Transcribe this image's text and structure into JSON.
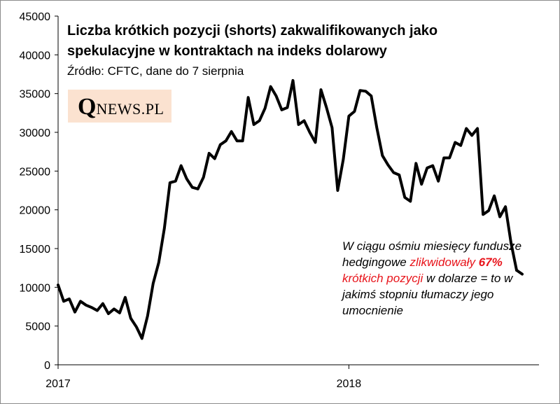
{
  "chart_data": {
    "type": "line",
    "title": "Liczba krótkich pozycji (shorts) zakwalifikowanych jako spekulacyjne w kontraktach na indeks dolarowy",
    "subtitle": "Źródło: CFTC, dane do 7 sierpnia",
    "xlabel": "",
    "ylabel": "",
    "ylim": [
      0,
      45000
    ],
    "y_ticks": [
      "0",
      "5000",
      "10000",
      "15000",
      "20000",
      "25000",
      "30000",
      "35000",
      "40000",
      "45000"
    ],
    "x_ticks": [
      {
        "label": "2017",
        "week": 0
      },
      {
        "label": "2018",
        "week": 52
      }
    ],
    "grid": false,
    "legend": "none",
    "line_color": "#000000",
    "series": [
      {
        "x": [
          0,
          1,
          2,
          3,
          4,
          5,
          6,
          7,
          8,
          9,
          10,
          11,
          12,
          13,
          14,
          15,
          16,
          17,
          18,
          19,
          20,
          21,
          22,
          23,
          24,
          25,
          26,
          27,
          28,
          29,
          30,
          31,
          32,
          33,
          34,
          35,
          36,
          37,
          38,
          39,
          40,
          41,
          42,
          43,
          44,
          45,
          46,
          47,
          48,
          49,
          50,
          51,
          52,
          53,
          54,
          55,
          56,
          57,
          58,
          59,
          60,
          61,
          62,
          63,
          64,
          65,
          66,
          67,
          68,
          69,
          70,
          71,
          72,
          73,
          74,
          75,
          76,
          77,
          78,
          79,
          80,
          81,
          82
        ],
        "values": [
          10300,
          8200,
          8500,
          6800,
          8200,
          7700,
          7400,
          7000,
          7900,
          6600,
          7200,
          6700,
          8700,
          6000,
          4900,
          3400,
          6300,
          10500,
          13200,
          17600,
          23500,
          23700,
          25700,
          24000,
          22900,
          22700,
          24200,
          27300,
          26600,
          28400,
          28900,
          30100,
          28900,
          28900,
          34500,
          31000,
          31500,
          33100,
          35900,
          34700,
          32900,
          33200,
          36700,
          31000,
          31500,
          30000,
          28700,
          35500,
          33200,
          30600,
          22500,
          26500,
          32100,
          32700,
          35400,
          35300,
          34700,
          30600,
          27000,
          25800,
          24800,
          24500,
          21600,
          21100,
          26000,
          23300,
          25400,
          25700,
          23700,
          26700,
          26700,
          28700,
          28300,
          30500,
          29600,
          30500,
          19400,
          19900,
          21800,
          19100,
          20400,
          15700,
          12200
        ]
      },
      {
        "x": [
          82,
          83
        ],
        "values": [
          12200,
          11700
        ]
      }
    ]
  },
  "logo": {
    "q": "Q",
    "rest": "NEWS.PL"
  },
  "annotation": {
    "part1": "W ciągu ośmiu miesięcy fundusze hedgingowe",
    "red1": "zlikwidowały",
    "red_bold": "67%",
    "red2": "krótkich pozycji",
    "part2": "w dolarze = to w jakimś stopniu tłumaczy jego umocnienie"
  }
}
